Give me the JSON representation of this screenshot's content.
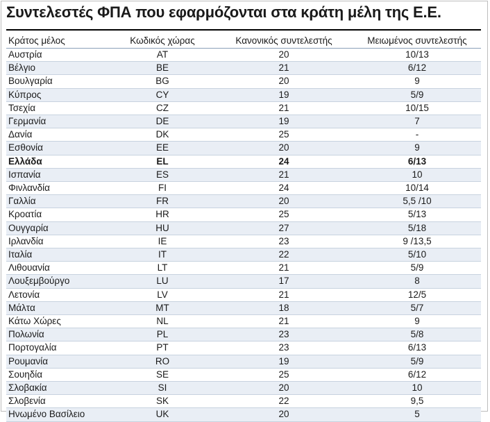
{
  "title": "Συντελεστές ΦΠΑ που εφαρμόζονται στα κράτη μέλη της Ε.Ε.",
  "columns": [
    "Κράτος μέλος",
    "Κωδικός χώρας",
    "Κανονικός συντελεστής",
    "Μειωμένος συντελεστής"
  ],
  "rows": [
    [
      "Αυστρία",
      "AT",
      "20",
      "10/13"
    ],
    [
      "Βέλγιο",
      "BE",
      "21",
      "6/12"
    ],
    [
      "Βουλγαρία",
      "BG",
      "20",
      "9"
    ],
    [
      "Κύπρος",
      "CY",
      "19",
      "5/9"
    ],
    [
      "Τσεχία",
      "CZ",
      "21",
      "10/15"
    ],
    [
      "Γερμανία",
      "DE",
      "19",
      "7"
    ],
    [
      "Δανία",
      "DK",
      "25",
      "-"
    ],
    [
      "Εσθονία",
      "EE",
      "20",
      "9"
    ],
    [
      "Ελλάδα",
      "EL",
      "24",
      "6/13"
    ],
    [
      "Ισπανία",
      "ES",
      "21",
      "10"
    ],
    [
      "Φινλανδία",
      "FI",
      "24",
      "10/14"
    ],
    [
      "Γαλλία",
      "FR",
      "20",
      "5,5 /10"
    ],
    [
      "Κροατία",
      "HR",
      "25",
      "5/13"
    ],
    [
      "Ουγγαρία",
      "HU",
      "27",
      "5/18"
    ],
    [
      "Ιρλανδία",
      "IE",
      "23",
      "9 /13,5"
    ],
    [
      "Ιταλία",
      "IT",
      "22",
      "5/10"
    ],
    [
      "Λιθουανία",
      "LT",
      "21",
      "5/9"
    ],
    [
      "Λουξεμβούργο",
      "LU",
      "17",
      "8"
    ],
    [
      "Λετονία",
      "LV",
      "21",
      "12/5"
    ],
    [
      "Μάλτα",
      "MT",
      "18",
      "5/7"
    ],
    [
      "Κάτω Χώρες",
      "NL",
      "21",
      "9"
    ],
    [
      "Πολωνία",
      "PL",
      "23",
      "5/8"
    ],
    [
      "Πορτογαλία",
      "PT",
      "23",
      "6/13"
    ],
    [
      "Ρουμανία",
      "RO",
      "19",
      "5/9"
    ],
    [
      "Σουηδία",
      "SE",
      "25",
      "6/12"
    ],
    [
      "Σλοβακία",
      "SI",
      "20",
      "10"
    ],
    [
      "Σλοβενία",
      "SK",
      "22",
      "9,5"
    ],
    [
      "Ηνωμένο Βασίλειο",
      "UK",
      "20",
      "5"
    ]
  ],
  "highlight_row_code": "EL"
}
